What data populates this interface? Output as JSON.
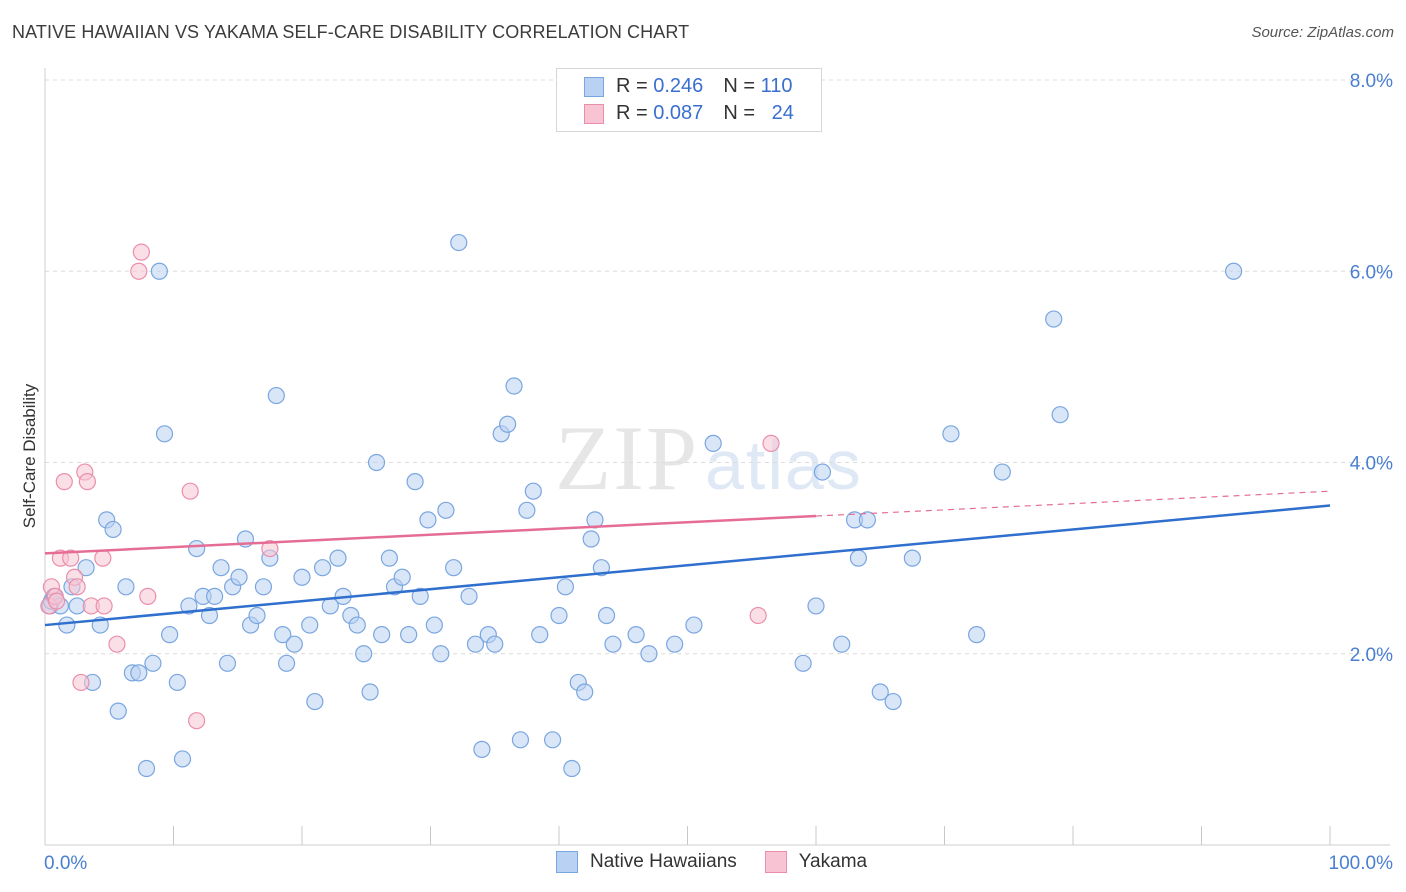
{
  "title": "NATIVE HAWAIIAN VS YAKAMA SELF-CARE DISABILITY CORRELATION CHART",
  "source": "Source: ZipAtlas.com",
  "watermark": {
    "zip": "ZIP",
    "atlas": "atlas"
  },
  "legend": {
    "rows": [
      {
        "r_label": "R =",
        "r_value": "0.246",
        "n_label": "N =",
        "n_value": "110"
      },
      {
        "r_label": "R =",
        "r_value": "0.087",
        "n_label": "N =",
        "n_value": "24"
      }
    ]
  },
  "bottom_legend": {
    "series1": "Native Hawaiians",
    "series2": "Yakama"
  },
  "colors": {
    "blue_fill": "#b9d2f3",
    "blue_stroke": "#7aa6e0",
    "blue_line": "#2f6fce",
    "pink_fill": "#f8c4d3",
    "pink_stroke": "#ea8fab",
    "pink_line": "#e56d95",
    "tick_text": "#4a7fd0",
    "grid": "#dcdcdc"
  },
  "chart_data": {
    "type": "scatter",
    "title": "NATIVE HAWAIIAN VS YAKAMA SELF-CARE DISABILITY CORRELATION CHART",
    "xlabel": "",
    "ylabel": "Self-Care Disability",
    "xlim": [
      0,
      100
    ],
    "ylim": [
      0,
      8.0
    ],
    "x_tick_labels": [
      "0.0%",
      "100.0%"
    ],
    "y_ticks": [
      2.0,
      4.0,
      6.0,
      8.0
    ],
    "y_tick_labels": [
      "2.0%",
      "4.0%",
      "6.0%",
      "8.0%"
    ],
    "series": [
      {
        "name": "Native Hawaiians",
        "r": 0.246,
        "n": 110,
        "trend": {
          "x": [
            0,
            100
          ],
          "y": [
            2.3,
            3.55
          ],
          "dashed_from": null
        },
        "points": [
          [
            0.4,
            2.5
          ],
          [
            0.5,
            2.55
          ],
          [
            0.7,
            2.6
          ],
          [
            1.2,
            2.5
          ],
          [
            1.7,
            2.3
          ],
          [
            2.1,
            2.7
          ],
          [
            2.5,
            2.5
          ],
          [
            3.2,
            2.9
          ],
          [
            3.7,
            1.7
          ],
          [
            4.3,
            2.3
          ],
          [
            4.8,
            3.4
          ],
          [
            5.3,
            3.3
          ],
          [
            5.7,
            1.4
          ],
          [
            6.3,
            2.7
          ],
          [
            6.8,
            1.8
          ],
          [
            7.3,
            1.8
          ],
          [
            7.9,
            0.8
          ],
          [
            8.4,
            1.9
          ],
          [
            8.9,
            6.0
          ],
          [
            9.3,
            4.3
          ],
          [
            9.7,
            2.2
          ],
          [
            10.3,
            1.7
          ],
          [
            10.7,
            0.9
          ],
          [
            11.2,
            2.5
          ],
          [
            11.8,
            3.1
          ],
          [
            12.3,
            2.6
          ],
          [
            12.8,
            2.4
          ],
          [
            13.2,
            2.6
          ],
          [
            13.7,
            2.9
          ],
          [
            14.2,
            1.9
          ],
          [
            14.6,
            2.7
          ],
          [
            15.1,
            2.8
          ],
          [
            15.6,
            3.2
          ],
          [
            16.0,
            2.3
          ],
          [
            16.5,
            2.4
          ],
          [
            17.0,
            2.7
          ],
          [
            17.5,
            3.0
          ],
          [
            18.0,
            4.7
          ],
          [
            18.5,
            2.2
          ],
          [
            18.8,
            1.9
          ],
          [
            19.4,
            2.1
          ],
          [
            20.0,
            2.8
          ],
          [
            20.6,
            2.3
          ],
          [
            21.0,
            1.5
          ],
          [
            21.6,
            2.9
          ],
          [
            22.2,
            2.5
          ],
          [
            22.8,
            3.0
          ],
          [
            23.2,
            2.6
          ],
          [
            23.8,
            2.4
          ],
          [
            24.3,
            2.3
          ],
          [
            24.8,
            2.0
          ],
          [
            25.3,
            1.6
          ],
          [
            25.8,
            4.0
          ],
          [
            26.2,
            2.2
          ],
          [
            26.8,
            3.0
          ],
          [
            27.2,
            2.7
          ],
          [
            27.8,
            2.8
          ],
          [
            28.3,
            2.2
          ],
          [
            28.8,
            3.8
          ],
          [
            29.2,
            2.6
          ],
          [
            29.8,
            3.4
          ],
          [
            30.3,
            2.3
          ],
          [
            30.8,
            2.0
          ],
          [
            31.2,
            3.5
          ],
          [
            31.8,
            2.9
          ],
          [
            32.2,
            6.3
          ],
          [
            33.0,
            2.6
          ],
          [
            33.5,
            2.1
          ],
          [
            34.0,
            1.0
          ],
          [
            34.5,
            2.2
          ],
          [
            35.0,
            2.1
          ],
          [
            35.5,
            4.3
          ],
          [
            36.0,
            4.4
          ],
          [
            36.5,
            4.8
          ],
          [
            37.0,
            1.1
          ],
          [
            37.5,
            3.5
          ],
          [
            38.0,
            3.7
          ],
          [
            38.5,
            2.2
          ],
          [
            39.5,
            1.1
          ],
          [
            40.0,
            2.4
          ],
          [
            40.5,
            2.7
          ],
          [
            41.0,
            0.8
          ],
          [
            41.5,
            1.7
          ],
          [
            42.0,
            1.6
          ],
          [
            42.5,
            3.2
          ],
          [
            42.8,
            3.4
          ],
          [
            43.3,
            2.9
          ],
          [
            43.7,
            2.4
          ],
          [
            44.2,
            2.1
          ],
          [
            46.0,
            2.2
          ],
          [
            47.0,
            2.0
          ],
          [
            49.0,
            2.1
          ],
          [
            50.5,
            2.3
          ],
          [
            52.0,
            4.2
          ],
          [
            59.0,
            1.9
          ],
          [
            60.0,
            2.5
          ],
          [
            60.5,
            3.9
          ],
          [
            62.0,
            2.1
          ],
          [
            63.0,
            3.4
          ],
          [
            63.3,
            3.0
          ],
          [
            64.0,
            3.4
          ],
          [
            65.0,
            1.6
          ],
          [
            66.0,
            1.5
          ],
          [
            67.5,
            3.0
          ],
          [
            70.5,
            4.3
          ],
          [
            72.5,
            2.2
          ],
          [
            74.5,
            3.9
          ],
          [
            78.5,
            5.5
          ],
          [
            79.0,
            4.5
          ],
          [
            92.5,
            6.0
          ]
        ]
      },
      {
        "name": "Yakama",
        "r": 0.087,
        "n": 24,
        "trend": {
          "x": [
            0,
            100
          ],
          "y": [
            3.05,
            3.7
          ],
          "dashed_from": 60
        },
        "points": [
          [
            0.3,
            2.5
          ],
          [
            0.5,
            2.7
          ],
          [
            0.8,
            2.6
          ],
          [
            1.2,
            3.0
          ],
          [
            1.5,
            3.8
          ],
          [
            2.0,
            3.0
          ],
          [
            2.3,
            2.8
          ],
          [
            2.5,
            2.7
          ],
          [
            2.8,
            1.7
          ],
          [
            3.1,
            3.9
          ],
          [
            3.3,
            3.8
          ],
          [
            3.6,
            2.5
          ],
          [
            4.5,
            3.0
          ],
          [
            4.6,
            2.5
          ],
          [
            5.6,
            2.1
          ],
          [
            7.3,
            6.0
          ],
          [
            7.5,
            6.2
          ],
          [
            8.0,
            2.6
          ],
          [
            11.3,
            3.7
          ],
          [
            11.8,
            1.3
          ],
          [
            17.5,
            3.1
          ],
          [
            55.5,
            2.4
          ],
          [
            56.5,
            4.2
          ],
          [
            0.9,
            2.55
          ]
        ]
      }
    ]
  }
}
